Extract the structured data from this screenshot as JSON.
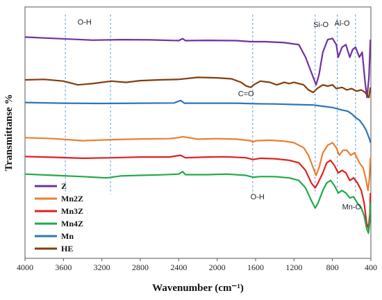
{
  "chart_data": {
    "type": "line",
    "title": "",
    "xlabel": "Wavenumber (cm⁻¹)",
    "ylabel": "Transmittanse %",
    "xlim": [
      4000,
      400
    ],
    "x_reversed": true,
    "x_ticks": [
      4000,
      3600,
      3200,
      2800,
      2400,
      2000,
      1600,
      1200,
      800,
      400
    ],
    "y_ticks_shown": false,
    "grid": false,
    "legend_position": "bottom-left",
    "series": [
      {
        "name": "Z",
        "color": "#7030a0",
        "points": [
          [
            4000,
            0.88
          ],
          [
            3700,
            0.875
          ],
          [
            3300,
            0.868
          ],
          [
            3000,
            0.87
          ],
          [
            2700,
            0.869
          ],
          [
            2400,
            0.866
          ],
          [
            2360,
            0.874
          ],
          [
            2330,
            0.866
          ],
          [
            2100,
            0.867
          ],
          [
            1800,
            0.866
          ],
          [
            1650,
            0.862
          ],
          [
            1500,
            0.862
          ],
          [
            1300,
            0.858
          ],
          [
            1150,
            0.85
          ],
          [
            1080,
            0.8
          ],
          [
            1000,
            0.72
          ],
          [
            970,
            0.69
          ],
          [
            940,
            0.73
          ],
          [
            900,
            0.82
          ],
          [
            850,
            0.87
          ],
          [
            800,
            0.875
          ],
          [
            760,
            0.85
          ],
          [
            740,
            0.8
          ],
          [
            700,
            0.84
          ],
          [
            660,
            0.85
          ],
          [
            620,
            0.8
          ],
          [
            590,
            0.83
          ],
          [
            560,
            0.84
          ],
          [
            520,
            0.8
          ],
          [
            490,
            0.82
          ],
          [
            460,
            0.7
          ],
          [
            440,
            0.64
          ],
          [
            420,
            0.72
          ],
          [
            405,
            0.87
          ]
        ]
      },
      {
        "name": "HE",
        "color": "#843c0c",
        "points": [
          [
            4000,
            0.71
          ],
          [
            3800,
            0.712
          ],
          [
            3600,
            0.705
          ],
          [
            3450,
            0.69
          ],
          [
            3300,
            0.695
          ],
          [
            3100,
            0.705
          ],
          [
            2950,
            0.7
          ],
          [
            2800,
            0.707
          ],
          [
            2600,
            0.71
          ],
          [
            2400,
            0.712
          ],
          [
            2200,
            0.72
          ],
          [
            2000,
            0.718
          ],
          [
            1850,
            0.714
          ],
          [
            1750,
            0.7
          ],
          [
            1700,
            0.686
          ],
          [
            1650,
            0.68
          ],
          [
            1620,
            0.69
          ],
          [
            1550,
            0.705
          ],
          [
            1450,
            0.7
          ],
          [
            1380,
            0.69
          ],
          [
            1300,
            0.7
          ],
          [
            1250,
            0.695
          ],
          [
            1200,
            0.7
          ],
          [
            1100,
            0.69
          ],
          [
            1050,
            0.67
          ],
          [
            1000,
            0.66
          ],
          [
            960,
            0.675
          ],
          [
            900,
            0.69
          ],
          [
            850,
            0.685
          ],
          [
            800,
            0.69
          ],
          [
            760,
            0.675
          ],
          [
            700,
            0.68
          ],
          [
            650,
            0.67
          ],
          [
            600,
            0.675
          ],
          [
            550,
            0.665
          ],
          [
            500,
            0.67
          ],
          [
            460,
            0.66
          ],
          [
            420,
            0.64
          ],
          [
            405,
            0.68
          ]
        ]
      },
      {
        "name": "Mn",
        "color": "#2e75b6",
        "points": [
          [
            4000,
            0.62
          ],
          [
            3600,
            0.617
          ],
          [
            3200,
            0.616
          ],
          [
            2800,
            0.617
          ],
          [
            2450,
            0.618
          ],
          [
            2380,
            0.628
          ],
          [
            2340,
            0.617
          ],
          [
            2000,
            0.617
          ],
          [
            1800,
            0.617
          ],
          [
            1600,
            0.615
          ],
          [
            1400,
            0.614
          ],
          [
            1200,
            0.612
          ],
          [
            1000,
            0.61
          ],
          [
            900,
            0.605
          ],
          [
            800,
            0.6
          ],
          [
            700,
            0.59
          ],
          [
            640,
            0.585
          ],
          [
            600,
            0.575
          ],
          [
            560,
            0.56
          ],
          [
            520,
            0.55
          ],
          [
            480,
            0.53
          ],
          [
            450,
            0.51
          ],
          [
            430,
            0.49
          ],
          [
            410,
            0.47
          ],
          [
            405,
            0.46
          ]
        ]
      },
      {
        "name": "Mn2Z",
        "color": "#ed7d31",
        "points": [
          [
            4000,
            0.48
          ],
          [
            3700,
            0.476
          ],
          [
            3400,
            0.468
          ],
          [
            3100,
            0.472
          ],
          [
            2800,
            0.475
          ],
          [
            2500,
            0.476
          ],
          [
            2400,
            0.48
          ],
          [
            2360,
            0.484
          ],
          [
            2200,
            0.474
          ],
          [
            2000,
            0.476
          ],
          [
            1800,
            0.474
          ],
          [
            1650,
            0.468
          ],
          [
            1630,
            0.462
          ],
          [
            1600,
            0.468
          ],
          [
            1450,
            0.47
          ],
          [
            1300,
            0.466
          ],
          [
            1200,
            0.46
          ],
          [
            1100,
            0.44
          ],
          [
            1050,
            0.41
          ],
          [
            1000,
            0.36
          ],
          [
            970,
            0.33
          ],
          [
            940,
            0.36
          ],
          [
            900,
            0.42
          ],
          [
            850,
            0.45
          ],
          [
            800,
            0.46
          ],
          [
            760,
            0.44
          ],
          [
            730,
            0.41
          ],
          [
            690,
            0.43
          ],
          [
            650,
            0.43
          ],
          [
            610,
            0.41
          ],
          [
            570,
            0.42
          ],
          [
            520,
            0.38
          ],
          [
            480,
            0.36
          ],
          [
            455,
            0.32
          ],
          [
            430,
            0.27
          ],
          [
            415,
            0.32
          ],
          [
            405,
            0.4
          ]
        ]
      },
      {
        "name": "Mn3Z",
        "color": "#e02020",
        "points": [
          [
            4000,
            0.405
          ],
          [
            3700,
            0.402
          ],
          [
            3400,
            0.398
          ],
          [
            3100,
            0.4
          ],
          [
            2800,
            0.403
          ],
          [
            2500,
            0.403
          ],
          [
            2380,
            0.41
          ],
          [
            2330,
            0.4
          ],
          [
            2100,
            0.403
          ],
          [
            1900,
            0.404
          ],
          [
            1700,
            0.4
          ],
          [
            1630,
            0.393
          ],
          [
            1550,
            0.398
          ],
          [
            1400,
            0.396
          ],
          [
            1250,
            0.39
          ],
          [
            1150,
            0.38
          ],
          [
            1080,
            0.35
          ],
          [
            1020,
            0.3
          ],
          [
            980,
            0.28
          ],
          [
            950,
            0.3
          ],
          [
            900,
            0.34
          ],
          [
            860,
            0.38
          ],
          [
            820,
            0.39
          ],
          [
            780,
            0.37
          ],
          [
            740,
            0.34
          ],
          [
            700,
            0.35
          ],
          [
            660,
            0.34
          ],
          [
            620,
            0.31
          ],
          [
            580,
            0.32
          ],
          [
            540,
            0.3
          ],
          [
            500,
            0.27
          ],
          [
            470,
            0.22
          ],
          [
            445,
            0.14
          ],
          [
            425,
            0.12
          ],
          [
            410,
            0.18
          ],
          [
            405,
            0.26
          ]
        ]
      },
      {
        "name": "Mn4Z",
        "color": "#1faa4a",
        "points": [
          [
            4000,
            0.335
          ],
          [
            3700,
            0.33
          ],
          [
            3400,
            0.325
          ],
          [
            3150,
            0.32
          ],
          [
            3000,
            0.328
          ],
          [
            2800,
            0.33
          ],
          [
            2600,
            0.332
          ],
          [
            2400,
            0.335
          ],
          [
            2360,
            0.345
          ],
          [
            2330,
            0.333
          ],
          [
            2100,
            0.333
          ],
          [
            1900,
            0.335
          ],
          [
            1700,
            0.33
          ],
          [
            1630,
            0.323
          ],
          [
            1550,
            0.325
          ],
          [
            1400,
            0.325
          ],
          [
            1250,
            0.32
          ],
          [
            1150,
            0.31
          ],
          [
            1080,
            0.28
          ],
          [
            1020,
            0.23
          ],
          [
            980,
            0.2
          ],
          [
            950,
            0.22
          ],
          [
            900,
            0.27
          ],
          [
            860,
            0.3
          ],
          [
            820,
            0.31
          ],
          [
            780,
            0.29
          ],
          [
            740,
            0.26
          ],
          [
            700,
            0.27
          ],
          [
            660,
            0.26
          ],
          [
            620,
            0.24
          ],
          [
            580,
            0.245
          ],
          [
            540,
            0.22
          ],
          [
            500,
            0.2
          ],
          [
            470,
            0.17
          ],
          [
            445,
            0.12
          ],
          [
            425,
            0.1
          ],
          [
            410,
            0.15
          ],
          [
            405,
            0.22
          ]
        ]
      }
    ],
    "legend_order": [
      "Z",
      "Mn2Z",
      "Mn3Z",
      "Mn4Z",
      "Mn",
      "HE"
    ],
    "annotations": [
      {
        "text": "O-H",
        "x": 3380,
        "y": 0.93
      },
      {
        "text": "C=O",
        "x": 1700,
        "y": 0.645
      },
      {
        "text": "Si-O",
        "x": 920,
        "y": 0.92
      },
      {
        "text": "Al-O",
        "x": 700,
        "y": 0.925
      },
      {
        "text": "O-H",
        "x": 1580,
        "y": 0.235
      },
      {
        "text": "Mn-O",
        "x": 600,
        "y": 0.195
      }
    ],
    "reference_lines": [
      3580,
      3110,
      1630,
      980,
      750,
      560
    ]
  }
}
